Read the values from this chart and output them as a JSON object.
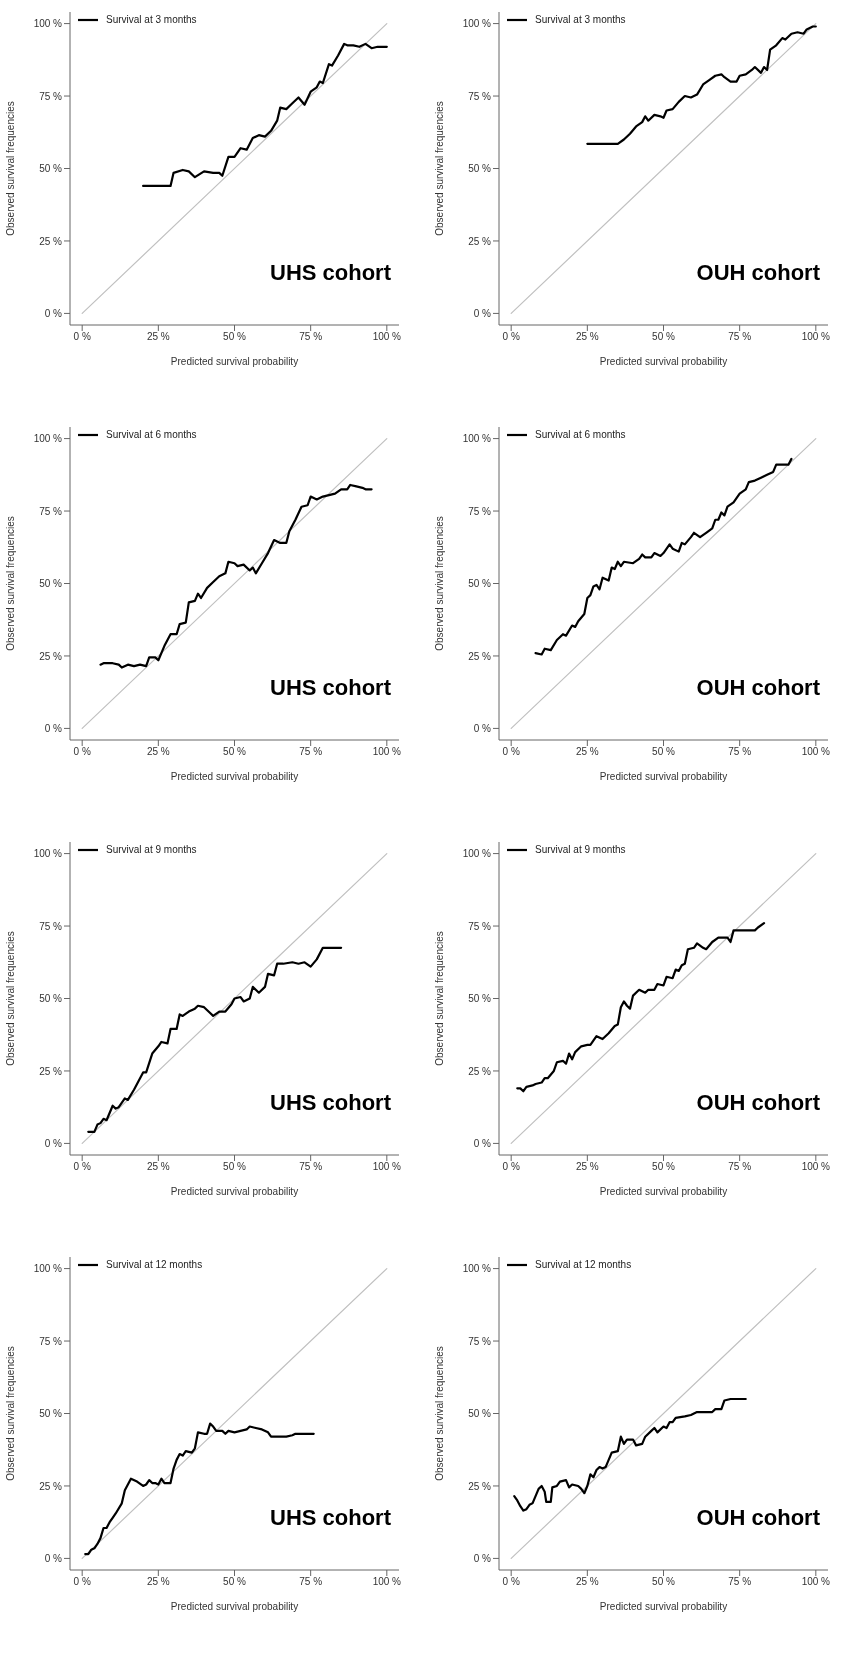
{
  "chart_data": [
    {
      "type": "line",
      "xlabel": "Predicted survival probability",
      "ylabel": "Observed survival frequencies",
      "xlim": [
        -4,
        104
      ],
      "ylim": [
        -4,
        104
      ],
      "xticks": [
        {
          "value": 0,
          "label": "0 %"
        },
        {
          "value": 25,
          "label": "25 %"
        },
        {
          "value": 50,
          "label": "50 %"
        },
        {
          "value": 75,
          "label": "75 %"
        },
        {
          "value": 100,
          "label": "100 %"
        }
      ],
      "yticks": [
        {
          "value": 0,
          "label": "0 %"
        },
        {
          "value": 25,
          "label": "25 %"
        },
        {
          "value": 50,
          "label": "50 %"
        },
        {
          "value": 75,
          "label": "75 %"
        },
        {
          "value": 100,
          "label": "100 %"
        }
      ],
      "legend": "top left",
      "annotations": [
        "UHS cohort"
      ],
      "series": [
        {
          "color": "#c0c0c0",
          "x": [
            0,
            100
          ],
          "values": [
            0,
            100
          ]
        },
        {
          "name": "Survival at 3 months",
          "color": "#000000",
          "x": [
            20,
            29,
            30,
            33,
            35,
            37,
            40,
            43,
            45,
            46,
            48,
            50,
            52,
            54,
            56,
            58,
            60,
            62,
            64,
            65,
            67,
            69,
            71,
            73,
            75,
            77,
            78,
            79,
            81,
            82,
            84,
            86,
            87,
            89,
            91,
            93,
            95,
            97,
            100
          ],
          "values": [
            44,
            44,
            48.5,
            49.5,
            49,
            47,
            49,
            48.5,
            48.5,
            47.5,
            54,
            54,
            57,
            56.5,
            60.5,
            61.5,
            61,
            63,
            66.5,
            71,
            70.5,
            72.5,
            74.5,
            72,
            76.5,
            78,
            80,
            79.5,
            86,
            85.5,
            89,
            93,
            92.5,
            92.5,
            92,
            93,
            91.5,
            92,
            92
          ]
        }
      ]
    },
    {
      "type": "line",
      "xlabel": "Predicted survival probability",
      "ylabel": "Observed survival frequencies",
      "xlim": [
        -4,
        104
      ],
      "ylim": [
        -4,
        104
      ],
      "xticks": [
        {
          "value": 0,
          "label": "0 %"
        },
        {
          "value": 25,
          "label": "25 %"
        },
        {
          "value": 50,
          "label": "50 %"
        },
        {
          "value": 75,
          "label": "75 %"
        },
        {
          "value": 100,
          "label": "100 %"
        }
      ],
      "yticks": [
        {
          "value": 0,
          "label": "0 %"
        },
        {
          "value": 25,
          "label": "25 %"
        },
        {
          "value": 50,
          "label": "50 %"
        },
        {
          "value": 75,
          "label": "75 %"
        },
        {
          "value": 100,
          "label": "100 %"
        }
      ],
      "legend": "top left",
      "annotations": [
        "OUH cohort"
      ],
      "series": [
        {
          "color": "#c0c0c0",
          "x": [
            0,
            100
          ],
          "values": [
            0,
            100
          ]
        },
        {
          "name": "Survival at 3 months",
          "color": "#000000",
          "x": [
            25,
            35,
            37,
            39,
            41,
            43,
            44,
            45,
            47,
            49,
            50,
            51,
            53,
            55,
            57,
            59,
            61,
            63,
            65,
            67,
            69,
            70,
            72,
            74,
            75,
            77,
            79,
            80,
            82,
            83,
            84,
            85,
            87,
            89,
            90,
            92,
            94,
            96,
            97,
            99,
            100
          ],
          "values": [
            58.5,
            58.5,
            60,
            62,
            64.5,
            66,
            68,
            66.5,
            68.5,
            68,
            67.5,
            70,
            70.5,
            73,
            75,
            74.5,
            75.5,
            79,
            80.5,
            82,
            82.5,
            81.5,
            80,
            80,
            82,
            82.5,
            84,
            85,
            83,
            85,
            84,
            91,
            92.5,
            95,
            94.5,
            96.5,
            97,
            96.5,
            98,
            99,
            99
          ]
        }
      ]
    },
    {
      "type": "line",
      "xlabel": "Predicted survival probability",
      "ylabel": "Observed survival frequencies",
      "xlim": [
        -4,
        104
      ],
      "ylim": [
        -4,
        104
      ],
      "xticks": [
        {
          "value": 0,
          "label": "0 %"
        },
        {
          "value": 25,
          "label": "25 %"
        },
        {
          "value": 50,
          "label": "50 %"
        },
        {
          "value": 75,
          "label": "75 %"
        },
        {
          "value": 100,
          "label": "100 %"
        }
      ],
      "yticks": [
        {
          "value": 0,
          "label": "0 %"
        },
        {
          "value": 25,
          "label": "25 %"
        },
        {
          "value": 50,
          "label": "50 %"
        },
        {
          "value": 75,
          "label": "75 %"
        },
        {
          "value": 100,
          "label": "100 %"
        }
      ],
      "legend": "top left",
      "annotations": [
        "UHS cohort"
      ],
      "series": [
        {
          "color": "#c0c0c0",
          "x": [
            0,
            100
          ],
          "values": [
            0,
            100
          ]
        },
        {
          "name": "Survival at 6 months",
          "color": "#000000",
          "x": [
            6,
            7,
            10,
            12,
            13,
            15,
            17,
            19,
            21,
            22,
            24,
            25,
            27,
            29,
            31,
            32,
            34,
            35,
            37,
            38,
            39,
            41,
            43,
            45,
            47,
            48,
            50,
            51,
            53,
            55,
            56,
            57,
            59,
            61,
            63,
            65,
            67,
            68,
            70,
            72,
            74,
            75,
            77,
            79,
            81,
            83,
            85,
            87,
            88,
            90,
            92,
            93,
            95
          ],
          "values": [
            22,
            22.5,
            22.5,
            22,
            21,
            22,
            21.5,
            22,
            21.5,
            24.5,
            24.5,
            23.5,
            28.5,
            32.5,
            32.5,
            36,
            36.5,
            43.5,
            44,
            46.5,
            45,
            48.5,
            50.5,
            52.5,
            53.5,
            57.5,
            57,
            56,
            56.5,
            54.5,
            55.5,
            53.5,
            57,
            60.5,
            65,
            64,
            64,
            68,
            72,
            76.5,
            77,
            80,
            79,
            80,
            80.5,
            81,
            82.5,
            82.5,
            84,
            83.5,
            83,
            82.5,
            82.5
          ]
        }
      ]
    },
    {
      "type": "line",
      "xlabel": "Predicted survival probability",
      "ylabel": "Observed survival frequencies",
      "xlim": [
        -4,
        104
      ],
      "ylim": [
        -4,
        104
      ],
      "xticks": [
        {
          "value": 0,
          "label": "0 %"
        },
        {
          "value": 25,
          "label": "25 %"
        },
        {
          "value": 50,
          "label": "50 %"
        },
        {
          "value": 75,
          "label": "75 %"
        },
        {
          "value": 100,
          "label": "100 %"
        }
      ],
      "yticks": [
        {
          "value": 0,
          "label": "0 %"
        },
        {
          "value": 25,
          "label": "25 %"
        },
        {
          "value": 50,
          "label": "50 %"
        },
        {
          "value": 75,
          "label": "75 %"
        },
        {
          "value": 100,
          "label": "100 %"
        }
      ],
      "legend": "top left",
      "annotations": [
        "OUH cohort"
      ],
      "series": [
        {
          "color": "#c0c0c0",
          "x": [
            0,
            100
          ],
          "values": [
            0,
            100
          ]
        },
        {
          "name": "Survival at 6 months",
          "color": "#000000",
          "x": [
            8,
            10,
            11,
            13,
            15,
            17,
            18,
            20,
            21,
            22,
            24,
            25,
            26,
            27,
            28,
            29,
            30,
            32,
            33,
            34,
            35,
            36,
            37,
            40,
            42,
            43,
            44,
            46,
            47,
            49,
            50,
            52,
            53,
            55,
            56,
            57,
            59,
            60,
            62,
            64,
            66,
            67,
            68,
            69,
            70,
            71,
            73,
            75,
            77,
            78,
            80,
            82,
            84,
            86,
            87,
            91,
            92
          ],
          "values": [
            26,
            25.5,
            27.5,
            27,
            30.5,
            32.5,
            32,
            35.5,
            35,
            37,
            39.5,
            45,
            46,
            49,
            49.5,
            48,
            52,
            51,
            55.5,
            55,
            57.5,
            56,
            57.5,
            57,
            58.5,
            60,
            59,
            59,
            60.5,
            59.5,
            60.5,
            63.5,
            62,
            61,
            64,
            63.5,
            66,
            67.5,
            66,
            67.5,
            69,
            72,
            72,
            74.5,
            73.5,
            76.5,
            78,
            81,
            82.5,
            85,
            85.5,
            86.5,
            87.5,
            88.5,
            91,
            91,
            93
          ]
        }
      ]
    },
    {
      "type": "line",
      "xlabel": "Predicted survival probability",
      "ylabel": "Observed survival frequencies",
      "xlim": [
        -4,
        104
      ],
      "ylim": [
        -4,
        104
      ],
      "xticks": [
        {
          "value": 0,
          "label": "0 %"
        },
        {
          "value": 25,
          "label": "25 %"
        },
        {
          "value": 50,
          "label": "50 %"
        },
        {
          "value": 75,
          "label": "75 %"
        },
        {
          "value": 100,
          "label": "100 %"
        }
      ],
      "yticks": [
        {
          "value": 0,
          "label": "0 %"
        },
        {
          "value": 25,
          "label": "25 %"
        },
        {
          "value": 50,
          "label": "50 %"
        },
        {
          "value": 75,
          "label": "75 %"
        },
        {
          "value": 100,
          "label": "100 %"
        }
      ],
      "legend": "top left",
      "annotations": [
        "UHS cohort"
      ],
      "series": [
        {
          "color": "#c0c0c0",
          "x": [
            0,
            100
          ],
          "values": [
            0,
            100
          ]
        },
        {
          "name": "Survival at 9 months",
          "color": "#000000",
          "x": [
            2,
            4,
            5,
            6,
            7,
            8,
            10,
            11,
            12,
            14,
            15,
            17,
            19,
            20,
            21,
            23,
            25,
            26,
            28,
            29,
            31,
            32,
            33,
            35,
            37,
            38,
            40,
            42,
            43,
            45,
            47,
            49,
            50,
            52,
            53,
            55,
            56,
            58,
            60,
            61,
            63,
            64,
            66,
            69,
            71,
            73,
            75,
            77,
            79,
            85
          ],
          "values": [
            4,
            4,
            6.5,
            7,
            8.5,
            8,
            13,
            12,
            12.5,
            15.5,
            15,
            18.5,
            22.5,
            24.5,
            24.5,
            31,
            33.5,
            35,
            34.5,
            39.5,
            39.5,
            44.5,
            44,
            45.5,
            46.5,
            47.5,
            47,
            45,
            44,
            45.5,
            45.5,
            48,
            50,
            50.5,
            49,
            50,
            54,
            52,
            54,
            58.5,
            58,
            62,
            62,
            62.5,
            62,
            62.5,
            61,
            63.5,
            67.5,
            67.5
          ]
        }
      ]
    },
    {
      "type": "line",
      "xlabel": "Predicted survival probability",
      "ylabel": "Observed survival frequencies",
      "xlim": [
        -4,
        104
      ],
      "ylim": [
        -4,
        104
      ],
      "xticks": [
        {
          "value": 0,
          "label": "0 %"
        },
        {
          "value": 25,
          "label": "25 %"
        },
        {
          "value": 50,
          "label": "50 %"
        },
        {
          "value": 75,
          "label": "75 %"
        },
        {
          "value": 100,
          "label": "100 %"
        }
      ],
      "yticks": [
        {
          "value": 0,
          "label": "0 %"
        },
        {
          "value": 25,
          "label": "25 %"
        },
        {
          "value": 50,
          "label": "50 %"
        },
        {
          "value": 75,
          "label": "75 %"
        },
        {
          "value": 100,
          "label": "100 %"
        }
      ],
      "legend": "top left",
      "annotations": [
        "OUH cohort"
      ],
      "series": [
        {
          "color": "#c0c0c0",
          "x": [
            0,
            100
          ],
          "values": [
            0,
            100
          ]
        },
        {
          "name": "Survival at 9 months",
          "color": "#000000",
          "x": [
            2,
            3,
            4,
            5,
            7,
            8,
            10,
            11,
            12,
            14,
            15,
            17,
            18,
            19,
            20,
            21,
            23,
            25,
            26,
            28,
            30,
            32,
            34,
            35,
            36,
            37,
            38,
            39,
            40,
            42,
            43,
            44,
            45,
            47,
            48,
            50,
            51,
            53,
            54,
            55,
            56,
            57,
            58,
            60,
            61,
            63,
            64,
            66,
            68,
            71,
            72,
            73,
            80,
            81,
            83
          ],
          "values": [
            19,
            19,
            18,
            19.5,
            20,
            20.5,
            21,
            22.5,
            22.5,
            25,
            28,
            28.5,
            27.5,
            31,
            29,
            31.5,
            33.5,
            34,
            34,
            37,
            36,
            38,
            40.5,
            41,
            47,
            49,
            47.5,
            46.5,
            51,
            53,
            52.5,
            52,
            53,
            53,
            55,
            54.5,
            57.5,
            57,
            60,
            59.5,
            61.5,
            62,
            67,
            67.5,
            69,
            67.5,
            67,
            69.5,
            71,
            71,
            69.5,
            73.5,
            73.5,
            74.5,
            76
          ]
        }
      ]
    },
    {
      "type": "line",
      "xlabel": "Predicted survival probability",
      "ylabel": "Observed survival frequencies",
      "xlim": [
        -4,
        104
      ],
      "ylim": [
        -4,
        104
      ],
      "xticks": [
        {
          "value": 0,
          "label": "0 %"
        },
        {
          "value": 25,
          "label": "25 %"
        },
        {
          "value": 50,
          "label": "50 %"
        },
        {
          "value": 75,
          "label": "75 %"
        },
        {
          "value": 100,
          "label": "100 %"
        }
      ],
      "yticks": [
        {
          "value": 0,
          "label": "0 %"
        },
        {
          "value": 25,
          "label": "25 %"
        },
        {
          "value": 50,
          "label": "50 %"
        },
        {
          "value": 75,
          "label": "75 %"
        },
        {
          "value": 100,
          "label": "100 %"
        }
      ],
      "legend": "top left",
      "annotations": [
        "UHS cohort"
      ],
      "series": [
        {
          "color": "#c0c0c0",
          "x": [
            0,
            100
          ],
          "values": [
            0,
            100
          ]
        },
        {
          "name": "Survival at 12 months",
          "color": "#000000",
          "x": [
            1,
            2,
            3,
            4,
            5,
            6,
            7,
            8,
            9,
            10,
            11,
            13,
            14,
            16,
            18,
            20,
            21,
            22,
            23,
            24,
            25,
            26,
            27,
            29,
            30,
            31,
            32,
            33,
            34,
            36,
            37,
            38,
            40,
            41,
            42,
            43,
            44,
            46,
            47,
            48,
            50,
            52,
            54,
            55,
            57,
            59,
            61,
            62,
            65,
            67,
            69,
            70,
            76
          ],
          "values": [
            1.5,
            1.5,
            3,
            3.5,
            5,
            7,
            10.5,
            10.5,
            12.5,
            14,
            15.5,
            19,
            23.5,
            27.5,
            26.5,
            25,
            25.5,
            27,
            26,
            26,
            25.5,
            27.5,
            26,
            26,
            31,
            34,
            36,
            35.5,
            37,
            36.5,
            38,
            43.5,
            43,
            43,
            46.5,
            45.5,
            44,
            44,
            43,
            44,
            43.5,
            44,
            44.5,
            45.5,
            45,
            44.5,
            43.5,
            42,
            42,
            42,
            42.5,
            43,
            43
          ]
        }
      ]
    },
    {
      "type": "line",
      "xlabel": "Predicted survival probability",
      "ylabel": "Observed survival frequencies",
      "xlim": [
        -4,
        104
      ],
      "ylim": [
        -4,
        104
      ],
      "xticks": [
        {
          "value": 0,
          "label": "0 %"
        },
        {
          "value": 25,
          "label": "25 %"
        },
        {
          "value": 50,
          "label": "50 %"
        },
        {
          "value": 75,
          "label": "75 %"
        },
        {
          "value": 100,
          "label": "100 %"
        }
      ],
      "yticks": [
        {
          "value": 0,
          "label": "0 %"
        },
        {
          "value": 25,
          "label": "25 %"
        },
        {
          "value": 50,
          "label": "50 %"
        },
        {
          "value": 75,
          "label": "75 %"
        },
        {
          "value": 100,
          "label": "100 %"
        }
      ],
      "legend": "top left",
      "annotations": [
        "OUH cohort"
      ],
      "series": [
        {
          "color": "#c0c0c0",
          "x": [
            0,
            100
          ],
          "values": [
            0,
            100
          ]
        },
        {
          "name": "Survival at 12 months",
          "color": "#000000",
          "x": [
            1,
            2,
            3,
            4,
            5,
            6,
            7,
            8,
            9,
            10,
            11,
            11.5,
            13,
            13.5,
            15,
            16,
            18,
            19,
            20,
            22,
            23,
            24,
            25,
            26,
            27,
            28,
            29,
            30,
            31,
            32,
            33,
            35,
            36,
            37,
            38,
            40,
            41,
            43,
            44,
            46,
            47,
            48,
            50,
            51,
            52,
            53,
            54,
            57,
            59,
            61,
            66,
            67,
            69,
            70,
            72,
            77
          ],
          "values": [
            21.5,
            20,
            18,
            16.5,
            17,
            18.5,
            19,
            21.5,
            24,
            25,
            23,
            19.5,
            19.5,
            24.5,
            25,
            26.5,
            27,
            24.5,
            25.5,
            25,
            24,
            22.5,
            25,
            29,
            28,
            30.5,
            31.5,
            31,
            31.5,
            34,
            36.5,
            37,
            42,
            39.5,
            41,
            41,
            39,
            39.5,
            42,
            44,
            45,
            43.5,
            45.5,
            45,
            47,
            47,
            48.5,
            49,
            49.5,
            50.5,
            50.5,
            51.5,
            51.5,
            54.5,
            55,
            55
          ]
        }
      ]
    }
  ]
}
